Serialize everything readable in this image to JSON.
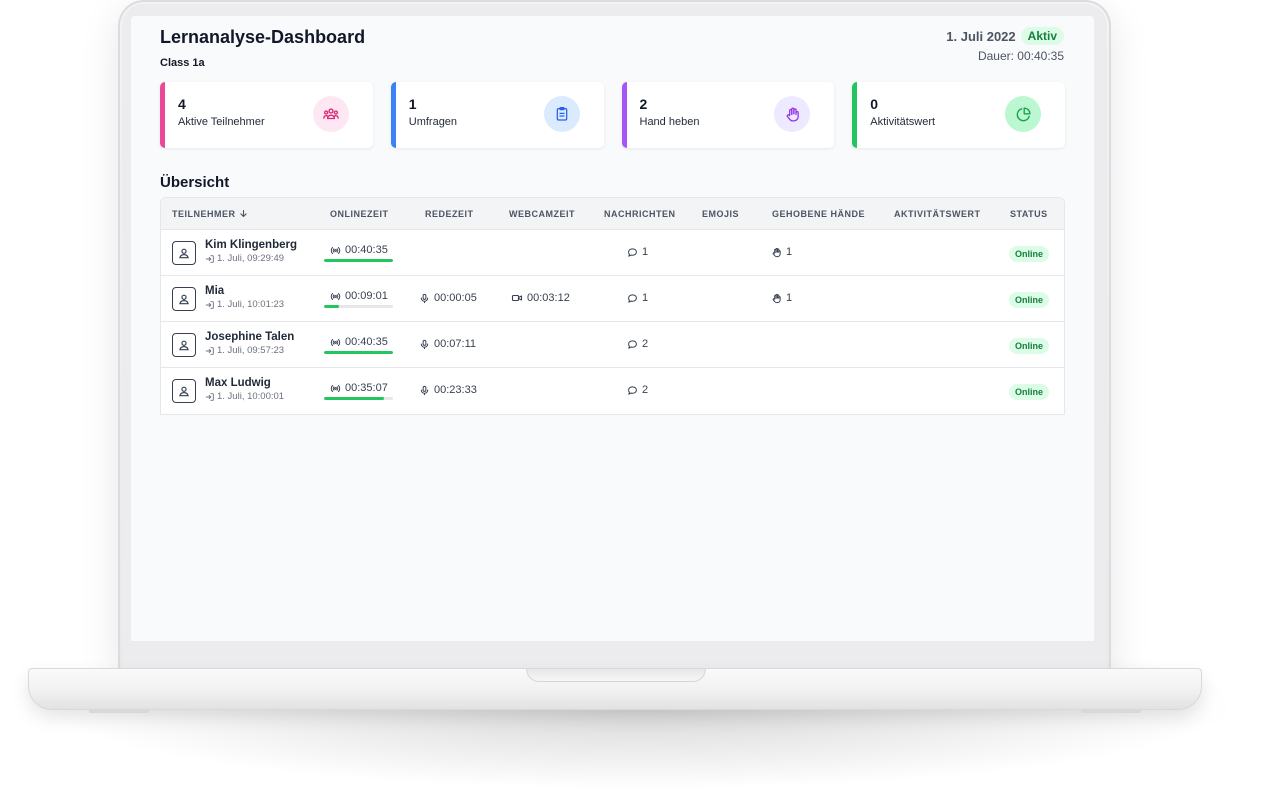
{
  "dashboard": {
    "title": "Lernanalyse-Dashboard",
    "subtitle": "Class 1a",
    "date": "1. Juli 2022",
    "state": "Aktiv",
    "duration": "Dauer: 00:40:35"
  },
  "cards": [
    {
      "value": "4",
      "label": "Aktive Teilnehmer",
      "accent": "#ec4899",
      "icon": "users-icon",
      "icon_bg": "#fce7f3",
      "icon_color": "#db2777"
    },
    {
      "value": "1",
      "label": "Umfragen",
      "accent": "#3b82f6",
      "icon": "clipboard-icon",
      "icon_bg": "#dbeafe",
      "icon_color": "#2563eb"
    },
    {
      "value": "2",
      "label": "Hand heben",
      "accent": "#a855f7",
      "icon": "hand-icon",
      "icon_bg": "#ede9fe",
      "icon_color": "#9333ea"
    },
    {
      "value": "0",
      "label": "Aktivitätswert",
      "accent": "#22c55e",
      "icon": "pie-chart-icon",
      "icon_bg": "#bbf7d0",
      "icon_color": "#16a34a"
    }
  ],
  "overview": {
    "title": "Übersicht",
    "columns": {
      "participant": "TEILNEHMER",
      "online": "ONLINEZEIT",
      "talk": "REDEZEIT",
      "webcam": "WEBCAMZEIT",
      "messages": "NACHRICHTEN",
      "emojis": "EMOJIS",
      "hands": "GEHOBENE HÄNDE",
      "activity": "AKTIVITÄTSWERT",
      "status": "STATUS"
    },
    "rows": [
      {
        "name": "Kim Klingenberg",
        "joined": "1. Juli, 09:29:49",
        "online": "00:40:35",
        "online_fraction": 1.0,
        "talk": "",
        "webcam": "",
        "messages": "1",
        "emojis": "",
        "hands": "1",
        "activity": "",
        "status": "Online"
      },
      {
        "name": "Mia",
        "joined": "1. Juli, 10:01:23",
        "online": "00:09:01",
        "online_fraction": 0.22,
        "talk": "00:00:05",
        "webcam": "00:03:12",
        "messages": "1",
        "emojis": "",
        "hands": "1",
        "activity": "",
        "status": "Online"
      },
      {
        "name": "Josephine Talen",
        "joined": "1. Juli, 09:57:23",
        "online": "00:40:35",
        "online_fraction": 1.0,
        "talk": "00:07:11",
        "webcam": "",
        "messages": "2",
        "emojis": "",
        "hands": "",
        "activity": "",
        "status": "Online"
      },
      {
        "name": "Max Ludwig",
        "joined": "1. Juli, 10:00:01",
        "online": "00:35:07",
        "online_fraction": 0.87,
        "talk": "00:23:33",
        "webcam": "",
        "messages": "2",
        "emojis": "",
        "hands": "",
        "activity": "",
        "status": "Online"
      }
    ]
  },
  "colors": {
    "status_online_bg": "#dcfce7",
    "status_online_text": "#15803d",
    "progress": "#22c55e"
  }
}
